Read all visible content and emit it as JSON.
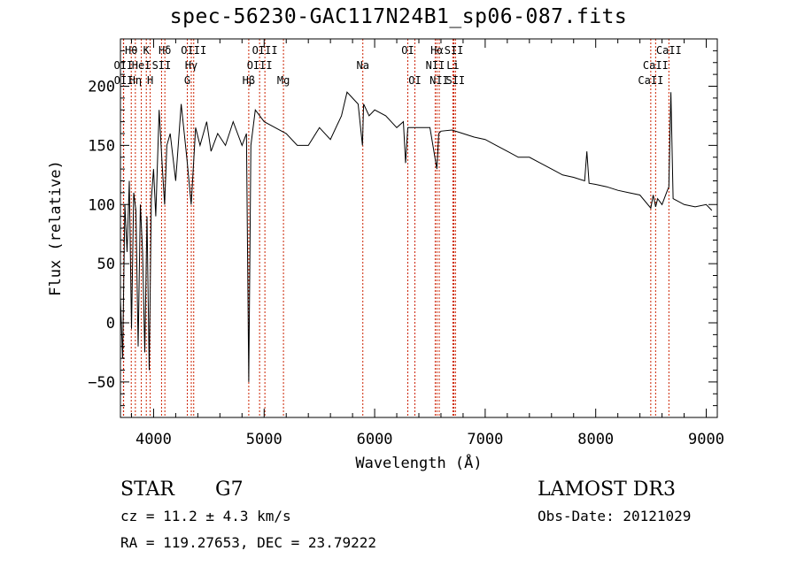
{
  "chart_data": {
    "type": "line",
    "title": "spec-56230-GAC117N24B1_sp06-087.fits",
    "xlabel": "Wavelength (Å)",
    "ylabel": "Flux (relative)",
    "xlim": [
      3700,
      9100
    ],
    "ylim": [
      -80,
      240
    ],
    "x_ticks": [
      4000,
      5000,
      6000,
      7000,
      8000,
      9000
    ],
    "y_ticks": [
      -50,
      0,
      50,
      100,
      150,
      200
    ],
    "x_tick_labels": [
      "4000",
      "5000",
      "6000",
      "7000",
      "8000",
      "9000"
    ],
    "y_tick_labels": [
      "−50",
      "0",
      "50",
      "100",
      "150",
      "200"
    ],
    "series": [
      {
        "name": "spectrum",
        "x": [
          3700,
          3720,
          3740,
          3760,
          3780,
          3800,
          3820,
          3840,
          3860,
          3880,
          3900,
          3920,
          3940,
          3960,
          3980,
          4000,
          4020,
          4050,
          4080,
          4100,
          4120,
          4150,
          4200,
          4250,
          4300,
          4340,
          4380,
          4420,
          4480,
          4520,
          4580,
          4650,
          4720,
          4800,
          4840,
          4861,
          4880,
          4920,
          5000,
          5100,
          5200,
          5300,
          5400,
          5500,
          5600,
          5700,
          5750,
          5800,
          5850,
          5890,
          5900,
          5950,
          6000,
          6100,
          6200,
          6260,
          6280,
          6300,
          6400,
          6500,
          6563,
          6580,
          6600,
          6700,
          6800,
          6900,
          7000,
          7100,
          7200,
          7300,
          7400,
          7500,
          7600,
          7700,
          7800,
          7900,
          7920,
          7940,
          8000,
          8100,
          8200,
          8300,
          8400,
          8498,
          8520,
          8542,
          8560,
          8600,
          8640,
          8662,
          8680,
          8700,
          8800,
          8900,
          9000,
          9050
        ],
        "y": [
          20,
          -30,
          100,
          60,
          120,
          -5,
          110,
          95,
          -20,
          100,
          60,
          -25,
          90,
          -40,
          105,
          130,
          90,
          180,
          130,
          100,
          150,
          160,
          120,
          185,
          140,
          100,
          165,
          150,
          170,
          145,
          160,
          150,
          170,
          150,
          160,
          -50,
          150,
          180,
          170,
          165,
          160,
          150,
          150,
          165,
          155,
          175,
          195,
          190,
          185,
          150,
          185,
          175,
          180,
          175,
          165,
          170,
          135,
          165,
          165,
          165,
          130,
          160,
          162,
          163,
          160,
          157,
          155,
          150,
          145,
          140,
          140,
          135,
          130,
          125,
          123,
          120,
          145,
          118,
          117,
          115,
          112,
          110,
          108,
          97,
          108,
          98,
          105,
          100,
          110,
          115,
          195,
          105,
          100,
          98,
          100,
          95
        ]
      }
    ],
    "line_markers": [
      {
        "label": "Hθ",
        "x": 3798,
        "row": 1
      },
      {
        "label": "OII",
        "x": 3727,
        "row": 2
      },
      {
        "label": "OII",
        "x": 3729,
        "row": 3
      },
      {
        "label": "Hη",
        "x": 3835,
        "row": 3
      },
      {
        "label": "K",
        "x": 3934,
        "row": 1
      },
      {
        "label": "HeI",
        "x": 3889,
        "row": 2
      },
      {
        "label": "H",
        "x": 3969,
        "row": 3
      },
      {
        "label": "Hδ",
        "x": 4102,
        "row": 1
      },
      {
        "label": "SII",
        "x": 4072,
        "row": 2
      },
      {
        "label": "OIII",
        "x": 4363,
        "row": 1
      },
      {
        "label": "Hγ",
        "x": 4341,
        "row": 2
      },
      {
        "label": "G",
        "x": 4305,
        "row": 3
      },
      {
        "label": "Hβ",
        "x": 4861,
        "row": 3
      },
      {
        "label": "OIII",
        "x": 5007,
        "row": 1
      },
      {
        "label": "OIII",
        "x": 4959,
        "row": 2
      },
      {
        "label": "Mg",
        "x": 5175,
        "row": 3
      },
      {
        "label": "Na",
        "x": 5893,
        "row": 2
      },
      {
        "label": "OI",
        "x": 6300,
        "row": 1
      },
      {
        "label": "OI",
        "x": 6364,
        "row": 3
      },
      {
        "label": "Hα",
        "x": 6563,
        "row": 1
      },
      {
        "label": "NII",
        "x": 6548,
        "row": 2
      },
      {
        "label": "NII",
        "x": 6584,
        "row": 3
      },
      {
        "label": "SII",
        "x": 6717,
        "row": 1
      },
      {
        "label": "Li",
        "x": 6708,
        "row": 2
      },
      {
        "label": "SII",
        "x": 6731,
        "row": 3
      },
      {
        "label": "CaII",
        "x": 8662,
        "row": 1
      },
      {
        "label": "CaII",
        "x": 8542,
        "row": 2
      },
      {
        "label": "CaII",
        "x": 8498,
        "row": 3
      }
    ]
  },
  "info": {
    "object_class": "STAR",
    "subclass": "G7",
    "survey": "LAMOST DR3",
    "redshift": "cz = 11.2 ± 4.3 km/s",
    "obs_date": "Obs-Date: 20121029",
    "coords": "RA = 119.27653, DEC =  23.79222"
  },
  "colors": {
    "marker": "#cc2200",
    "spectrum": "#000000"
  }
}
